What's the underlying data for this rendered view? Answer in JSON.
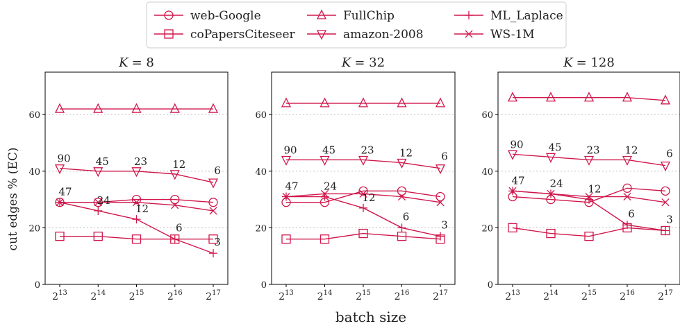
{
  "figure": {
    "ylabel": "cut edges % (EC)",
    "xlabel": "batch size",
    "color": "#d0174b",
    "legend_position": "top-center"
  },
  "legend": [
    {
      "name": "web-Google",
      "marker": "circle"
    },
    {
      "name": "coPapersCiteseer",
      "marker": "square"
    },
    {
      "name": "FullChip",
      "marker": "triangle-up"
    },
    {
      "name": "amazon-2008",
      "marker": "triangle-down"
    },
    {
      "name": "ML_Laplace",
      "marker": "plus"
    },
    {
      "name": "WS-1M",
      "marker": "x"
    }
  ],
  "chart_data": [
    {
      "type": "line",
      "title": "K = 8",
      "title_var": "K",
      "title_val": "= 8",
      "x_base": "2",
      "x_exponents": [
        "13",
        "14",
        "15",
        "16",
        "17"
      ],
      "ylim": [
        0,
        75
      ],
      "yticks": [
        0,
        20,
        40,
        60
      ],
      "grid": "horizontal dotted",
      "series": [
        {
          "name": "web-Google",
          "marker": "circle",
          "values": [
            29,
            29,
            30,
            30,
            29
          ]
        },
        {
          "name": "coPapersCiteseer",
          "marker": "square",
          "values": [
            17,
            17,
            16,
            16,
            16
          ]
        },
        {
          "name": "FullChip",
          "marker": "triangle-up",
          "values": [
            62,
            62,
            62,
            62,
            62
          ]
        },
        {
          "name": "amazon-2008",
          "marker": "triangle-down",
          "values": [
            41,
            40,
            40,
            39,
            36
          ]
        },
        {
          "name": "ML_Laplace",
          "marker": "plus",
          "values": [
            29,
            26,
            23,
            16,
            11
          ]
        },
        {
          "name": "WS-1M",
          "marker": "x",
          "values": [
            29,
            29,
            29,
            28,
            26
          ]
        }
      ],
      "annotations": [
        {
          "text": "90",
          "x": 0,
          "y": 41
        },
        {
          "text": "45",
          "x": 1,
          "y": 40
        },
        {
          "text": "23",
          "x": 2,
          "y": 40
        },
        {
          "text": "12",
          "x": 3,
          "y": 39
        },
        {
          "text": "6",
          "x": 4,
          "y": 36
        },
        {
          "text": "47",
          "x": 0,
          "y": 29
        },
        {
          "text": "24",
          "x": 1,
          "y": 26
        },
        {
          "text": "12",
          "x": 2,
          "y": 23
        },
        {
          "text": "6",
          "x": 3,
          "y": 16
        },
        {
          "text": "3",
          "x": 4,
          "y": 11
        }
      ]
    },
    {
      "type": "line",
      "title": "K = 32",
      "title_var": "K",
      "title_val": "= 32",
      "x_base": "2",
      "x_exponents": [
        "13",
        "14",
        "15",
        "16",
        "17"
      ],
      "ylim": [
        0,
        75
      ],
      "yticks": [
        0,
        20,
        40,
        60
      ],
      "grid": "horizontal dotted",
      "series": [
        {
          "name": "web-Google",
          "marker": "circle",
          "values": [
            29,
            29,
            33,
            33,
            31
          ]
        },
        {
          "name": "coPapersCiteseer",
          "marker": "square",
          "values": [
            16,
            16,
            18,
            17,
            16
          ]
        },
        {
          "name": "FullChip",
          "marker": "triangle-up",
          "values": [
            64,
            64,
            64,
            64,
            64
          ]
        },
        {
          "name": "amazon-2008",
          "marker": "triangle-down",
          "values": [
            44,
            44,
            44,
            43,
            41
          ]
        },
        {
          "name": "ML_Laplace",
          "marker": "plus",
          "values": [
            31,
            31,
            27,
            20,
            17
          ]
        },
        {
          "name": "WS-1M",
          "marker": "x",
          "values": [
            31,
            32,
            32,
            31,
            29
          ]
        }
      ],
      "annotations": [
        {
          "text": "90",
          "x": 0,
          "y": 44
        },
        {
          "text": "45",
          "x": 1,
          "y": 44
        },
        {
          "text": "23",
          "x": 2,
          "y": 44
        },
        {
          "text": "12",
          "x": 3,
          "y": 43
        },
        {
          "text": "6",
          "x": 4,
          "y": 41
        },
        {
          "text": "47",
          "x": 0,
          "y": 31
        },
        {
          "text": "24",
          "x": 1,
          "y": 31
        },
        {
          "text": "12",
          "x": 2,
          "y": 27
        },
        {
          "text": "6",
          "x": 3,
          "y": 20
        },
        {
          "text": "3",
          "x": 4,
          "y": 17
        }
      ]
    },
    {
      "type": "line",
      "title": "K = 128",
      "title_var": "K",
      "title_val": "= 128",
      "x_base": "2",
      "x_exponents": [
        "13",
        "14",
        "15",
        "16",
        "17"
      ],
      "ylim": [
        0,
        75
      ],
      "yticks": [
        0,
        20,
        40,
        60
      ],
      "grid": "horizontal dotted",
      "series": [
        {
          "name": "web-Google",
          "marker": "circle",
          "values": [
            31,
            30,
            29,
            34,
            33
          ]
        },
        {
          "name": "coPapersCiteseer",
          "marker": "square",
          "values": [
            20,
            18,
            17,
            20,
            19
          ]
        },
        {
          "name": "FullChip",
          "marker": "triangle-up",
          "values": [
            66,
            66,
            66,
            66,
            65
          ]
        },
        {
          "name": "amazon-2008",
          "marker": "triangle-down",
          "values": [
            46,
            45,
            44,
            44,
            42
          ]
        },
        {
          "name": "ML_Laplace",
          "marker": "plus",
          "values": [
            33,
            32,
            30,
            21,
            19
          ]
        },
        {
          "name": "WS-1M",
          "marker": "x",
          "values": [
            33,
            32,
            31,
            31,
            29
          ]
        }
      ],
      "annotations": [
        {
          "text": "90",
          "x": 0,
          "y": 46
        },
        {
          "text": "45",
          "x": 1,
          "y": 45
        },
        {
          "text": "23",
          "x": 2,
          "y": 44
        },
        {
          "text": "12",
          "x": 3,
          "y": 44
        },
        {
          "text": "6",
          "x": 4,
          "y": 42
        },
        {
          "text": "47",
          "x": 0,
          "y": 33
        },
        {
          "text": "24",
          "x": 1,
          "y": 32
        },
        {
          "text": "12",
          "x": 2,
          "y": 30
        },
        {
          "text": "6",
          "x": 3,
          "y": 21
        },
        {
          "text": "3",
          "x": 4,
          "y": 19
        }
      ]
    }
  ]
}
